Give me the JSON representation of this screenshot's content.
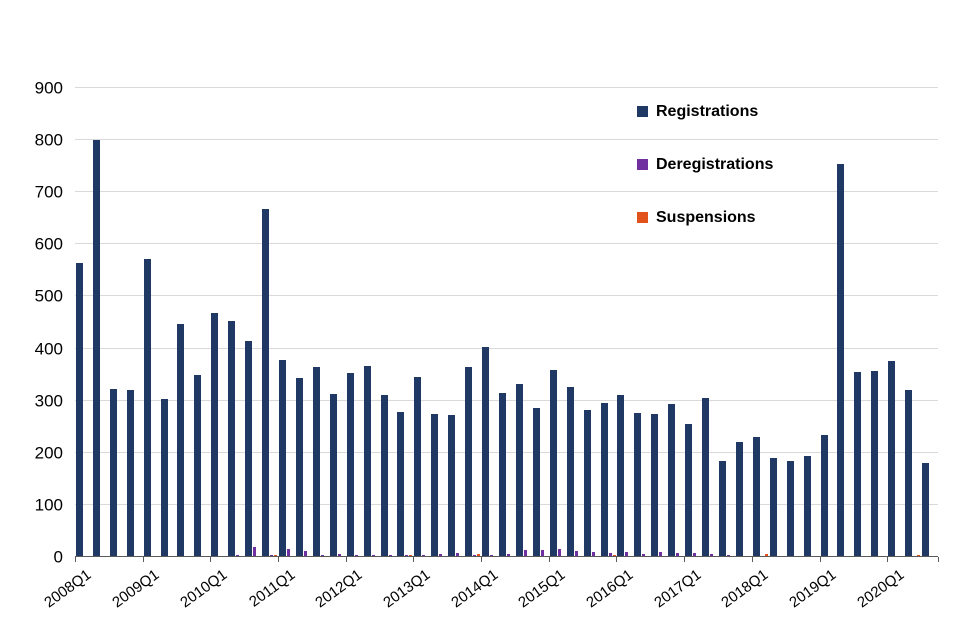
{
  "chart_data": {
    "type": "bar",
    "title": "",
    "xlabel": "",
    "ylabel": "",
    "ylim": [
      0,
      900
    ],
    "y_ticks": [
      0,
      100,
      200,
      300,
      400,
      500,
      600,
      700,
      800,
      900
    ],
    "grid": true,
    "legend_position": "top-right-inside",
    "x_tick_every": 4,
    "categories": [
      "2008Q1",
      "2008Q2",
      "2008Q3",
      "2008Q4",
      "2009Q1",
      "2009Q2",
      "2009Q3",
      "2009Q4",
      "2010Q1",
      "2010Q2",
      "2010Q3",
      "2010Q4",
      "2011Q1",
      "2011Q2",
      "2011Q3",
      "2011Q4",
      "2012Q1",
      "2012Q2",
      "2012Q3",
      "2012Q4",
      "2013Q1",
      "2013Q2",
      "2013Q3",
      "2013Q4",
      "2014Q1",
      "2014Q2",
      "2014Q3",
      "2014Q4",
      "2015Q1",
      "2015Q2",
      "2015Q3",
      "2015Q4",
      "2016Q1",
      "2016Q2",
      "2016Q3",
      "2016Q4",
      "2017Q1",
      "2017Q2",
      "2017Q3",
      "2017Q4",
      "2018Q1",
      "2018Q2",
      "2018Q3",
      "2018Q4",
      "2019Q1",
      "2019Q2",
      "2019Q3",
      "2019Q4",
      "2020Q1",
      "2020Q2",
      "2020Q3"
    ],
    "series": [
      {
        "name": "Registrations",
        "color": "#1F3864",
        "values": [
          565,
          800,
          323,
          320,
          572,
          303,
          448,
          350,
          468,
          452,
          414,
          668,
          378,
          343,
          365,
          313,
          353,
          366,
          310,
          278,
          345,
          274,
          272,
          365,
          403,
          315,
          332,
          285,
          358,
          327,
          283,
          296,
          310,
          277,
          275,
          293,
          255,
          305,
          184,
          220,
          230,
          190,
          184,
          194,
          234,
          755,
          355,
          357,
          376,
          320,
          180
        ]
      },
      {
        "name": "Deregistrations",
        "color": "#7030A0",
        "values": [
          0,
          0,
          0,
          2,
          0,
          2,
          0,
          2,
          2,
          3,
          20,
          4,
          15,
          11,
          4,
          5,
          4,
          3,
          4,
          3,
          4,
          6,
          8,
          4,
          3,
          6,
          13,
          14,
          15,
          12,
          9,
          8,
          10,
          6,
          9,
          8,
          8,
          5,
          3,
          2,
          2,
          2,
          2,
          2,
          2,
          2,
          2,
          2,
          2,
          2,
          0
        ]
      },
      {
        "name": "Suspensions",
        "color": "#E2521B",
        "values": [
          0,
          0,
          0,
          0,
          0,
          0,
          0,
          0,
          0,
          2,
          2,
          3,
          1,
          2,
          1,
          1,
          1,
          1,
          1,
          3,
          1,
          2,
          2,
          5,
          2,
          1,
          2,
          2,
          2,
          2,
          1,
          3,
          2,
          1,
          2,
          2,
          2,
          1,
          1,
          0,
          5,
          1,
          0,
          1,
          1,
          1,
          0,
          1,
          1,
          4,
          0
        ]
      }
    ]
  }
}
